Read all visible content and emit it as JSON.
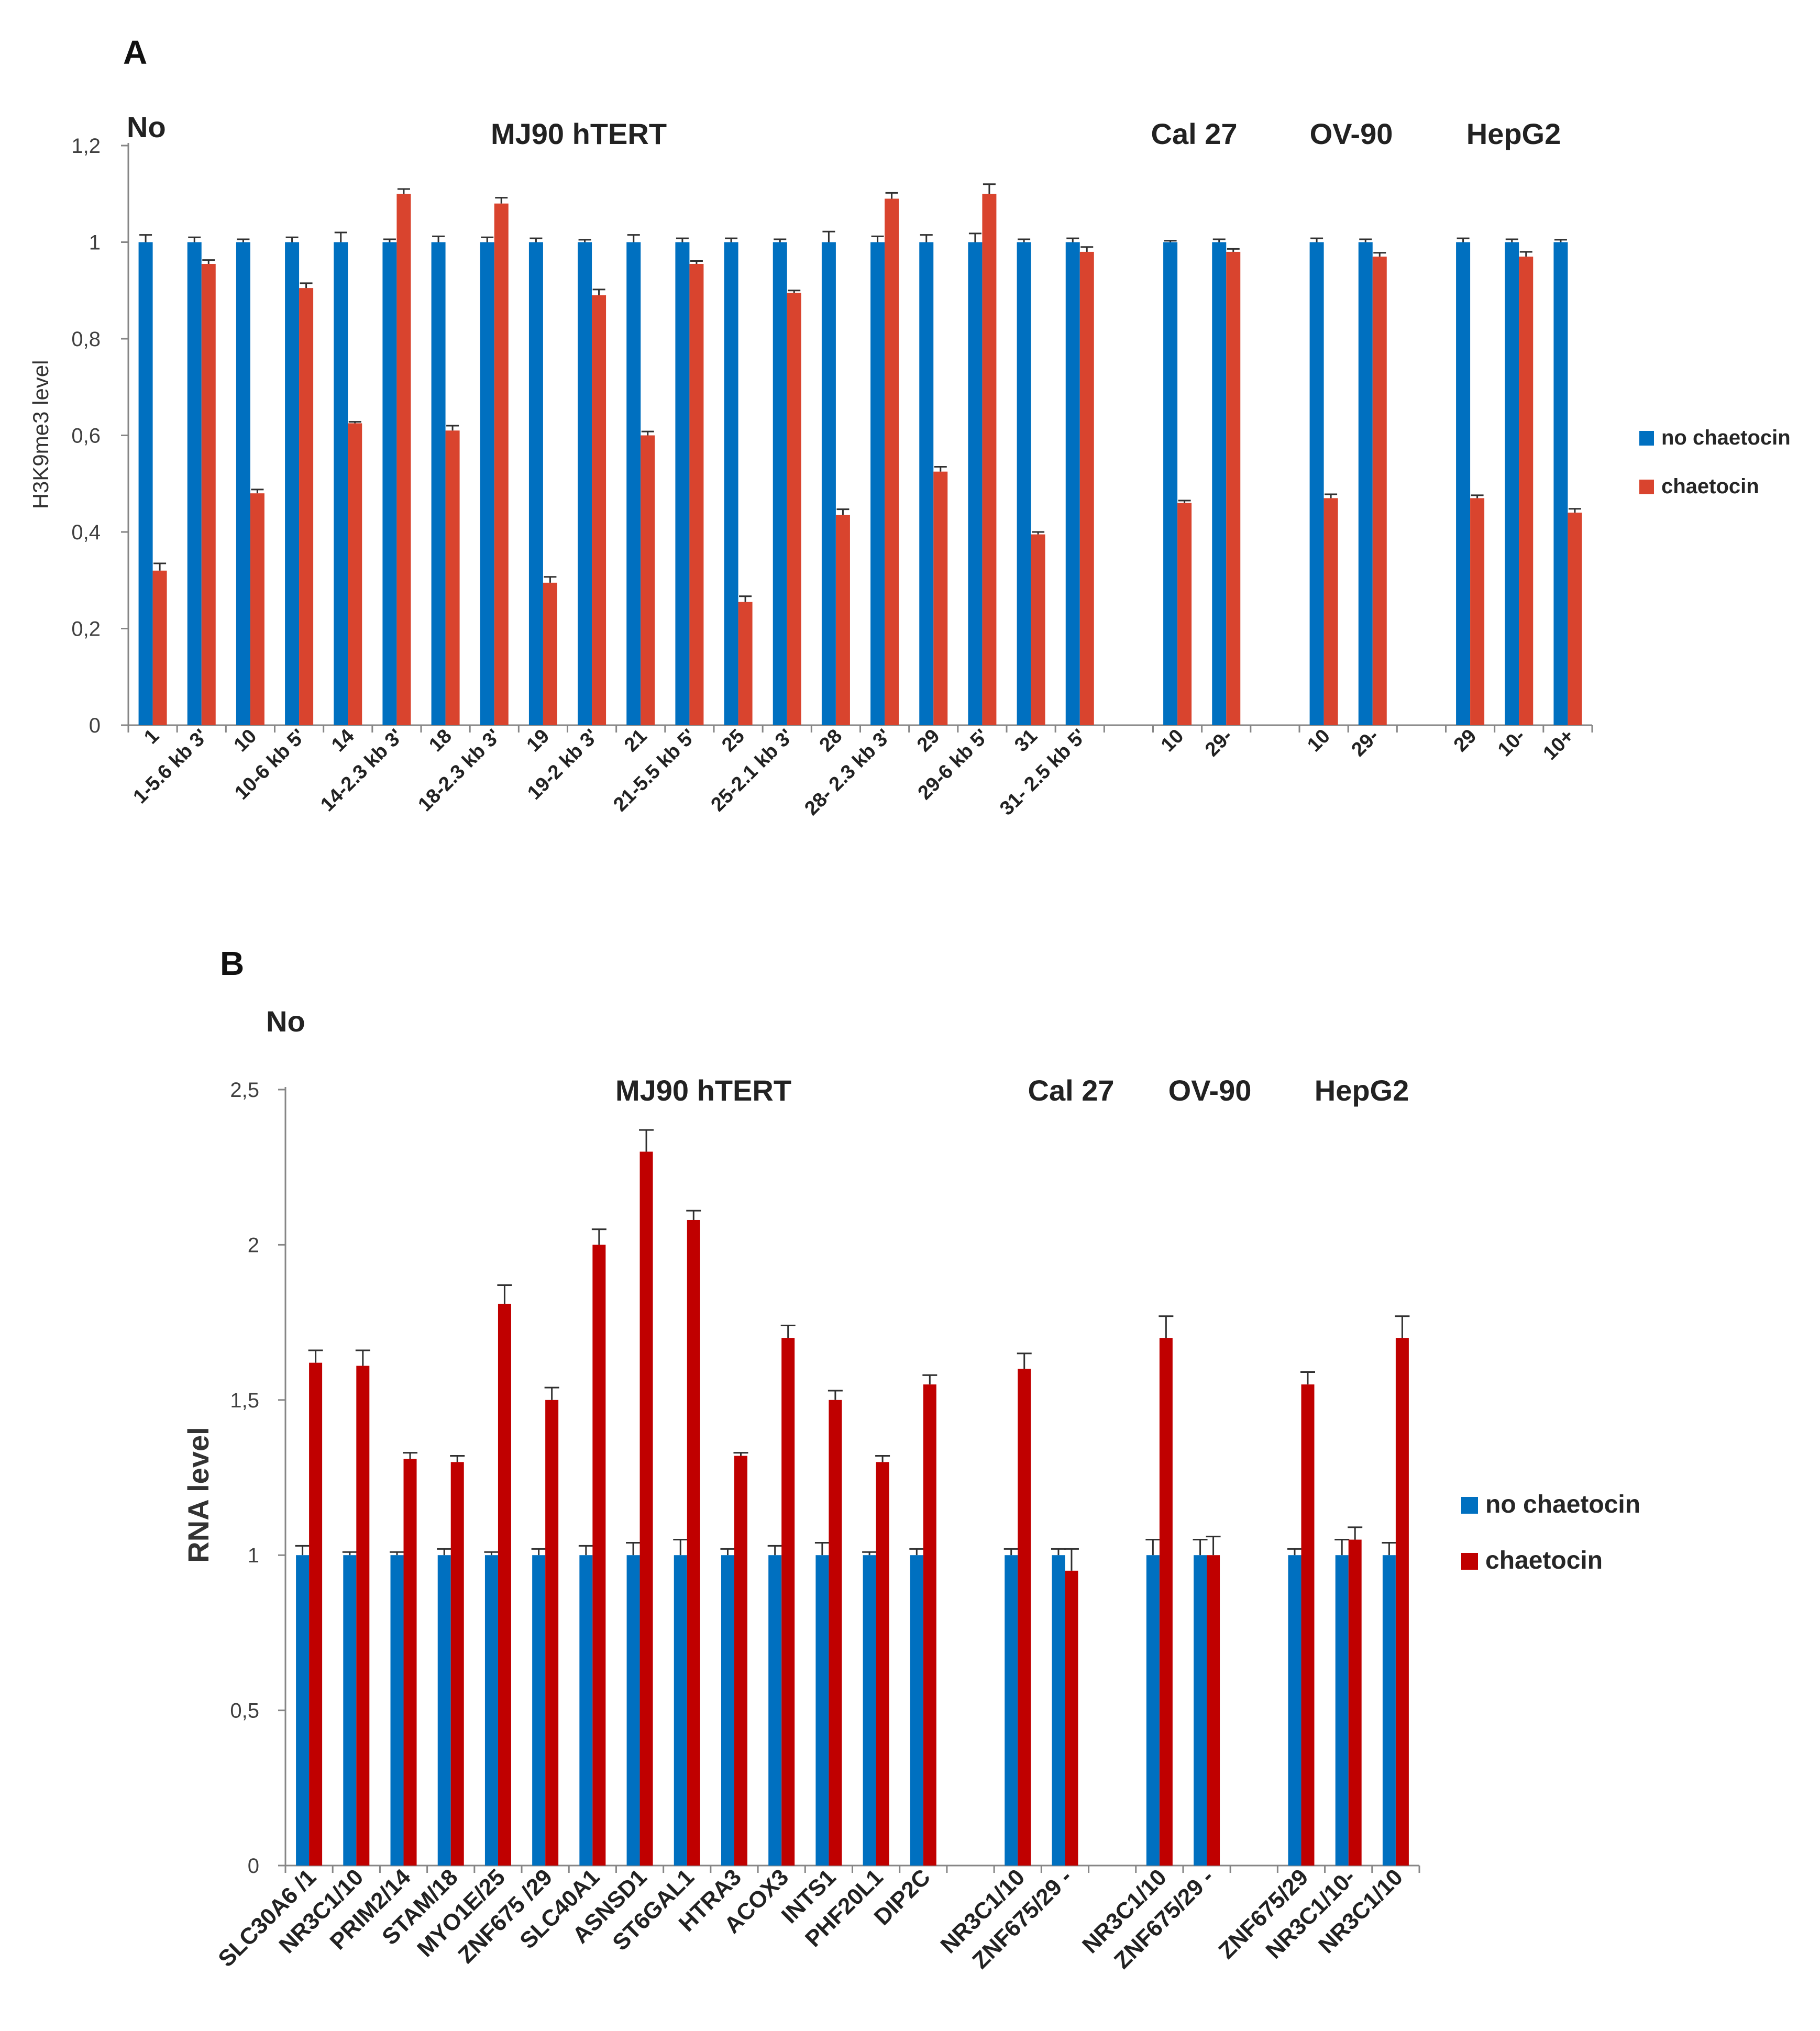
{
  "chart_data": [
    {
      "panel": "A",
      "type": "bar",
      "top_left_text": "No",
      "title_groups": [
        "MJ90 hTERT",
        "Cal 27",
        "OV-90",
        "HepG2"
      ],
      "ylabel": "H3K9me3 level",
      "xlabel": "",
      "ylim": [
        0,
        1.2
      ],
      "yticks": [
        "0",
        "0,2",
        "0,4",
        "0,6",
        "0,8",
        "1",
        "1,2"
      ],
      "legend": {
        "position": "right",
        "entries": [
          "no chaetocin",
          "chaetocin"
        ]
      },
      "colors": {
        "no chaetocin": "#0070C0",
        "chaetocin": "#D9442E"
      },
      "categories": [
        "1",
        "1-5.6 kb 3'",
        "10",
        "10-6 kb 5'",
        "14",
        "14-2.3 kb 3'",
        "18",
        "18-2.3 kb 3'",
        "19",
        "19-2 kb 3'",
        "21",
        "21-5.5 kb 5'",
        "25",
        "25-2.1 kb 3'",
        "28",
        "28- 2.3 kb 3'",
        "29",
        "29-6 kb 5'",
        "31",
        "31- 2.5 kb 5'",
        "10",
        "29-",
        "10",
        "29-",
        "29",
        "10-",
        "10+"
      ],
      "category_groups": [
        "MJ90 hTERT",
        "MJ90 hTERT",
        "MJ90 hTERT",
        "MJ90 hTERT",
        "MJ90 hTERT",
        "MJ90 hTERT",
        "MJ90 hTERT",
        "MJ90 hTERT",
        "MJ90 hTERT",
        "MJ90 hTERT",
        "MJ90 hTERT",
        "MJ90 hTERT",
        "MJ90 hTERT",
        "MJ90 hTERT",
        "MJ90 hTERT",
        "MJ90 hTERT",
        "MJ90 hTERT",
        "MJ90 hTERT",
        "MJ90 hTERT",
        "MJ90 hTERT",
        "Cal 27",
        "Cal 27",
        "OV-90",
        "OV-90",
        "HepG2",
        "HepG2",
        "HepG2"
      ],
      "series": [
        {
          "name": "no chaetocin",
          "values": [
            1,
            1,
            1,
            1,
            1,
            1,
            1,
            1,
            1,
            1,
            1,
            1,
            1,
            1,
            1,
            1,
            1,
            1,
            1,
            1,
            1,
            1,
            1,
            1,
            1,
            1,
            1
          ],
          "errors": [
            0.015,
            0.01,
            0.006,
            0.01,
            0.02,
            0.006,
            0.012,
            0.01,
            0.008,
            0.005,
            0.015,
            0.008,
            0.008,
            0.006,
            0.022,
            0.012,
            0.015,
            0.018,
            0.006,
            0.008,
            0.003,
            0.006,
            0.008,
            0.006,
            0.008,
            0.006,
            0.005
          ]
        },
        {
          "name": "chaetocin",
          "values": [
            0.32,
            0.955,
            0.48,
            0.905,
            0.625,
            1.1,
            0.61,
            1.08,
            0.295,
            0.89,
            0.6,
            0.955,
            0.255,
            0.895,
            0.435,
            1.09,
            0.525,
            1.1,
            0.395,
            0.98,
            0.46,
            0.98,
            0.47,
            0.97,
            0.47,
            0.97,
            0.44
          ],
          "errors": [
            0.015,
            0.008,
            0.008,
            0.01,
            0.003,
            0.01,
            0.01,
            0.012,
            0.012,
            0.012,
            0.008,
            0.006,
            0.012,
            0.005,
            0.012,
            0.012,
            0.01,
            0.02,
            0.005,
            0.01,
            0.005,
            0.006,
            0.008,
            0.008,
            0.006,
            0.01,
            0.008
          ]
        }
      ]
    },
    {
      "panel": "B",
      "type": "bar",
      "top_left_text": "No",
      "title_groups": [
        "MJ90 hTERT",
        "Cal 27",
        "OV-90",
        "HepG2"
      ],
      "ylabel": "RNA level",
      "xlabel": "",
      "ylim": [
        0,
        2.5
      ],
      "yticks": [
        "0",
        "0,5",
        "1",
        "1,5",
        "2",
        "2,5"
      ],
      "legend": {
        "position": "right",
        "entries": [
          "no chaetocin",
          "chaetocin"
        ]
      },
      "colors": {
        "no chaetocin": "#0070C0",
        "chaetocin": "#C00000"
      },
      "categories": [
        "SLC30A6 /1",
        "NR3C1/10",
        "PRIM2/14",
        "STAM/18",
        "MYO1E/25",
        "ZNF675 /29",
        "SLC40A1",
        "ASNSD1",
        "ST6GAL1",
        "HTRA3",
        "ACOX3",
        "INTS1",
        "PHF20L1",
        "DIP2C",
        "NR3C1/10",
        "ZNF675/29 -",
        "NR3C1/10",
        "ZNF675/29 -",
        "ZNF675/29",
        "NR3C1/10-",
        "NR3C1/10"
      ],
      "category_groups": [
        "MJ90 hTERT",
        "MJ90 hTERT",
        "MJ90 hTERT",
        "MJ90 hTERT",
        "MJ90 hTERT",
        "MJ90 hTERT",
        "MJ90 hTERT",
        "MJ90 hTERT",
        "MJ90 hTERT",
        "MJ90 hTERT",
        "MJ90 hTERT",
        "MJ90 hTERT",
        "MJ90 hTERT",
        "MJ90 hTERT",
        "Cal 27",
        "Cal 27",
        "OV-90",
        "OV-90",
        "HepG2",
        "HepG2",
        "HepG2"
      ],
      "series": [
        {
          "name": "no chaetocin",
          "values": [
            1,
            1,
            1,
            1,
            1,
            1,
            1,
            1,
            1,
            1,
            1,
            1,
            1,
            1,
            1,
            1,
            1,
            1,
            1,
            1,
            1
          ],
          "errors": [
            0.03,
            0.01,
            0.01,
            0.02,
            0.01,
            0.02,
            0.03,
            0.04,
            0.05,
            0.02,
            0.03,
            0.04,
            0.01,
            0.02,
            0.02,
            0.02,
            0.05,
            0.05,
            0.02,
            0.05,
            0.04
          ]
        },
        {
          "name": "chaetocin",
          "values": [
            1.62,
            1.61,
            1.31,
            1.3,
            1.81,
            1.5,
            2.0,
            2.3,
            2.08,
            1.32,
            1.7,
            1.5,
            1.3,
            1.55,
            1.6,
            0.95,
            1.7,
            1.0,
            1.55,
            1.05,
            1.7
          ],
          "errors": [
            0.04,
            0.05,
            0.02,
            0.02,
            0.06,
            0.04,
            0.05,
            0.07,
            0.03,
            0.01,
            0.04,
            0.03,
            0.02,
            0.03,
            0.05,
            0.07,
            0.07,
            0.06,
            0.04,
            0.04,
            0.07
          ]
        }
      ]
    }
  ]
}
